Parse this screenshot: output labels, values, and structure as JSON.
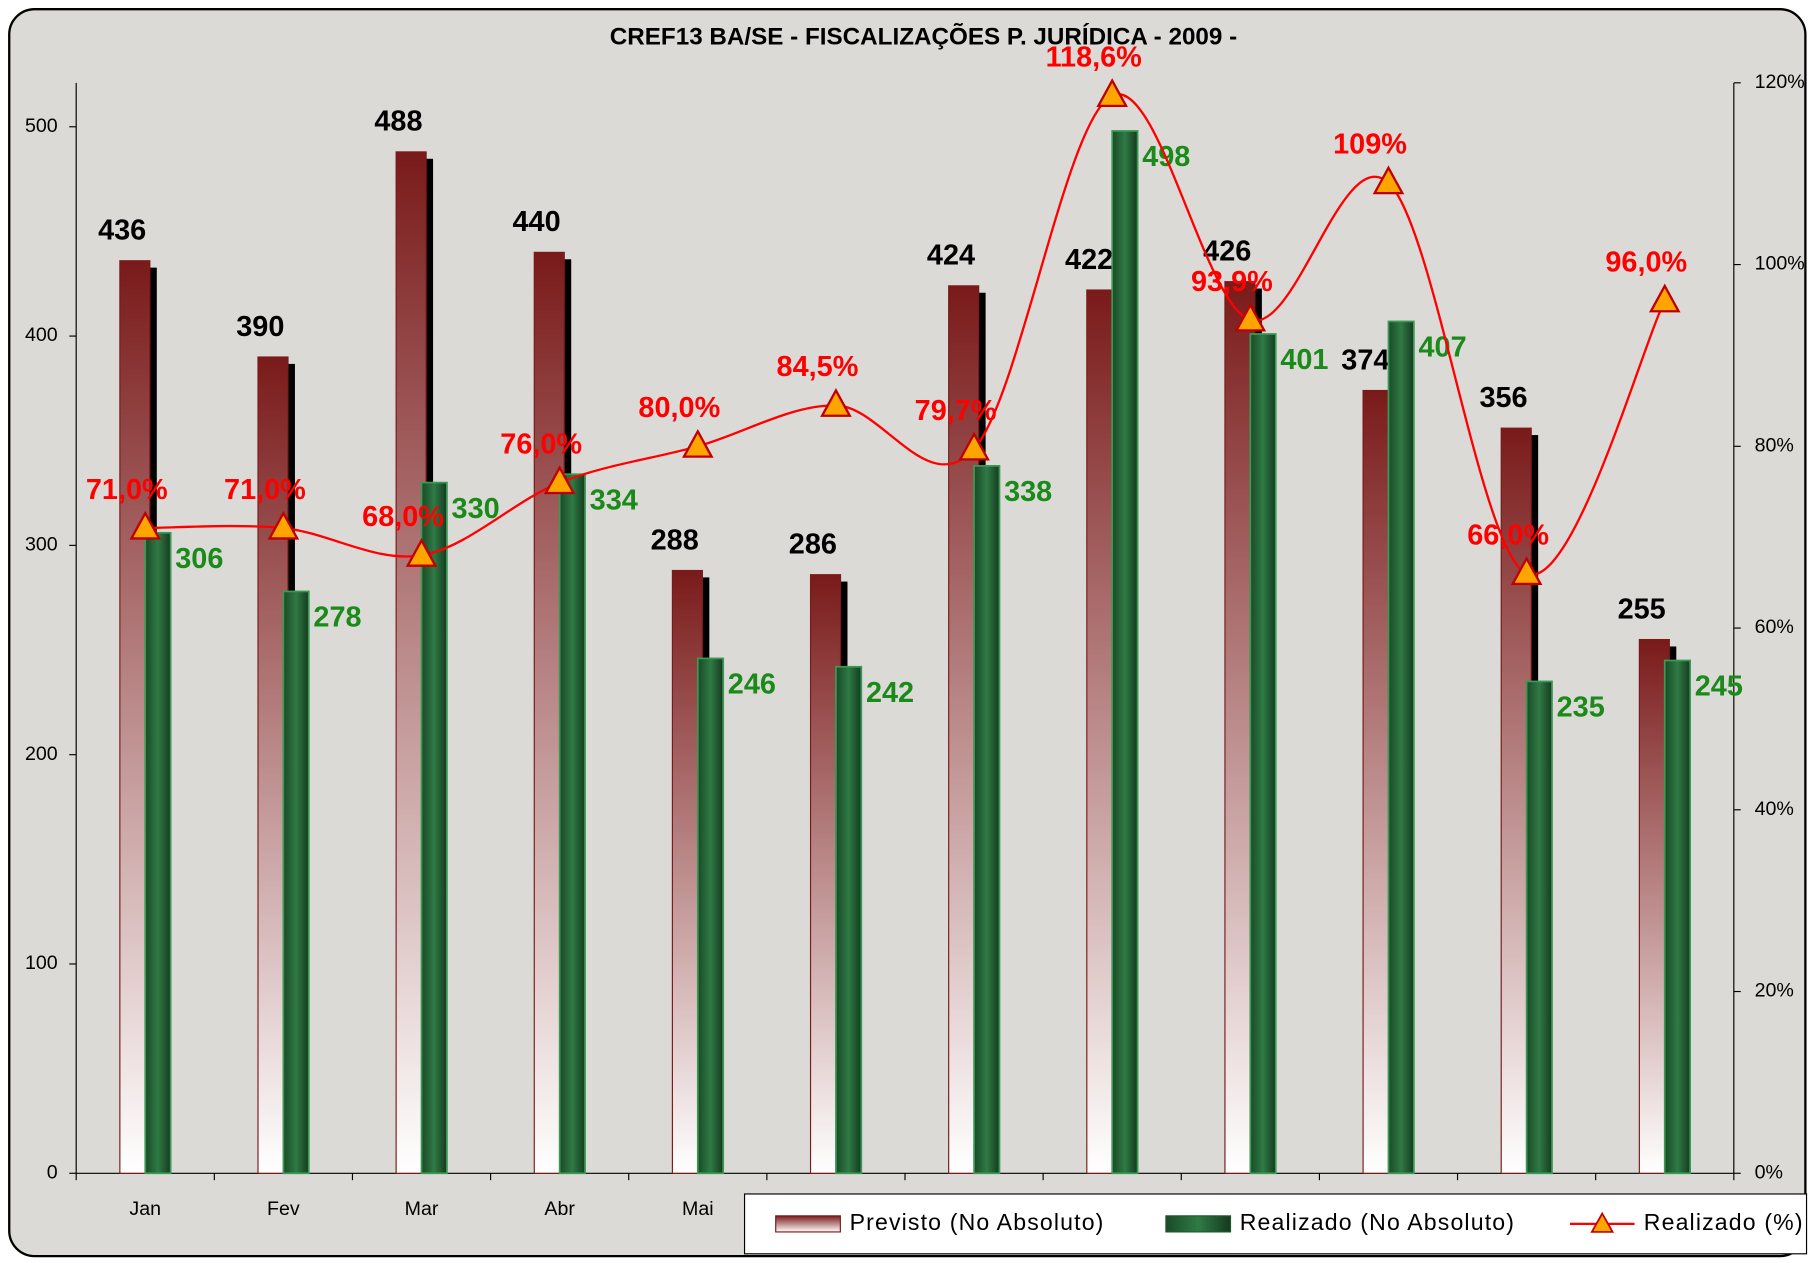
{
  "chart_data": {
    "type": "bar",
    "title": "CREF13 BA/SE - FISCALIZAÇÕES P. JURÍDICA - 2009 -",
    "categories": [
      "Jan",
      "Fev",
      "Mar",
      "Abr",
      "Mai",
      null,
      null,
      null,
      null,
      null,
      null,
      null
    ],
    "series": [
      {
        "name": "Previsto (No Absoluto)",
        "color": "#7a1a1a",
        "type": "bar",
        "values": [
          436,
          390,
          488,
          440,
          288,
          286,
          424,
          422,
          426,
          374,
          356,
          255
        ]
      },
      {
        "name": "Realizado (No Absoluto)",
        "color": "#1f5a2e",
        "type": "bar",
        "values": [
          306,
          278,
          330,
          334,
          246,
          242,
          338,
          498,
          401,
          407,
          235,
          245
        ]
      },
      {
        "name": "Realizado (%)",
        "color": "#ff0000",
        "type": "line",
        "axis": "y2",
        "values": [
          71.0,
          71.0,
          68.0,
          76.0,
          80.0,
          84.5,
          79.7,
          118.6,
          93.9,
          109,
          66.0,
          96.0
        ],
        "value_labels": [
          "71,0%",
          "71,0%",
          "68,0%",
          "76,0%",
          "80,0%",
          "84,5%",
          "79,7%",
          "118,6%",
          "93,9%",
          "109%",
          "66,0%",
          "96,0%"
        ]
      }
    ],
    "ylim": [
      0,
      521
    ],
    "yticks": [
      0,
      100,
      200,
      300,
      400,
      500
    ],
    "y2lim": [
      0,
      120
    ],
    "y2ticks": [
      {
        "value": 0,
        "label": "0%"
      },
      {
        "value": 20,
        "label": "20%"
      },
      {
        "value": 40,
        "label": "40%"
      },
      {
        "value": 60,
        "label": "60%"
      },
      {
        "value": 80,
        "label": "80%"
      },
      {
        "value": 100,
        "label": "100%"
      },
      {
        "value": 120,
        "label": "120%"
      }
    ],
    "legend": "bottom-right"
  }
}
